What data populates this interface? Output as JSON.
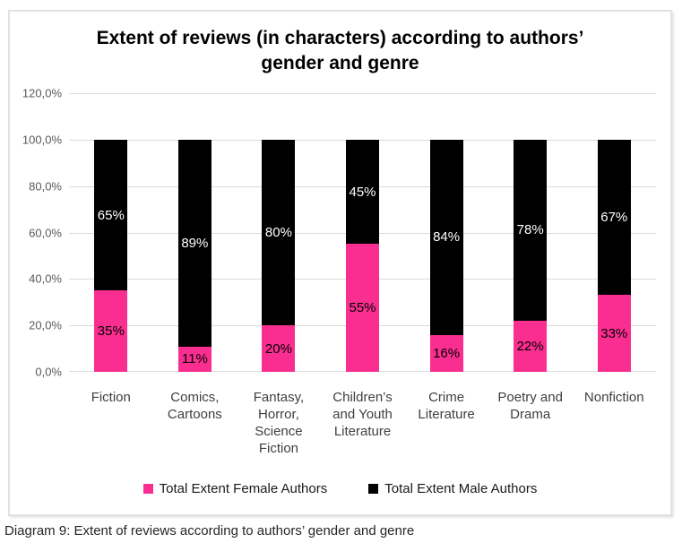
{
  "chart_data": {
    "type": "bar",
    "stacked": true,
    "title": "Extent of reviews (in characters) according to authors’ gender and genre",
    "categories": [
      "Fiction",
      "Comics, Cartoons",
      "Fantasy, Horror, Science Fiction",
      "Children’s and Youth Literature",
      "Crime Literature",
      "Poetry and Drama",
      "Nonfiction"
    ],
    "series": [
      {
        "name": "Total Extent Female Authors",
        "values": [
          35,
          11,
          20,
          55,
          16,
          22,
          33
        ],
        "color": "#fa2e90",
        "label_color": "#000000"
      },
      {
        "name": "Total Extent Male Authors",
        "values": [
          65,
          89,
          80,
          45,
          84,
          78,
          67
        ],
        "color": "#000000",
        "label_color": "#ffffff"
      }
    ],
    "value_suffix": "%",
    "y_ticks": [
      "120,0%",
      "100,0%",
      "80,0%",
      "60,0%",
      "40,0%",
      "20,0%",
      "0,0%"
    ],
    "ylim": [
      0,
      120
    ],
    "grid": true,
    "gridline_color": "#dbdbdb",
    "axis_label_color": "#595959",
    "legend_position": "bottom"
  },
  "caption": "Diagram 9: Extent of reviews according to authors’ gender and genre"
}
